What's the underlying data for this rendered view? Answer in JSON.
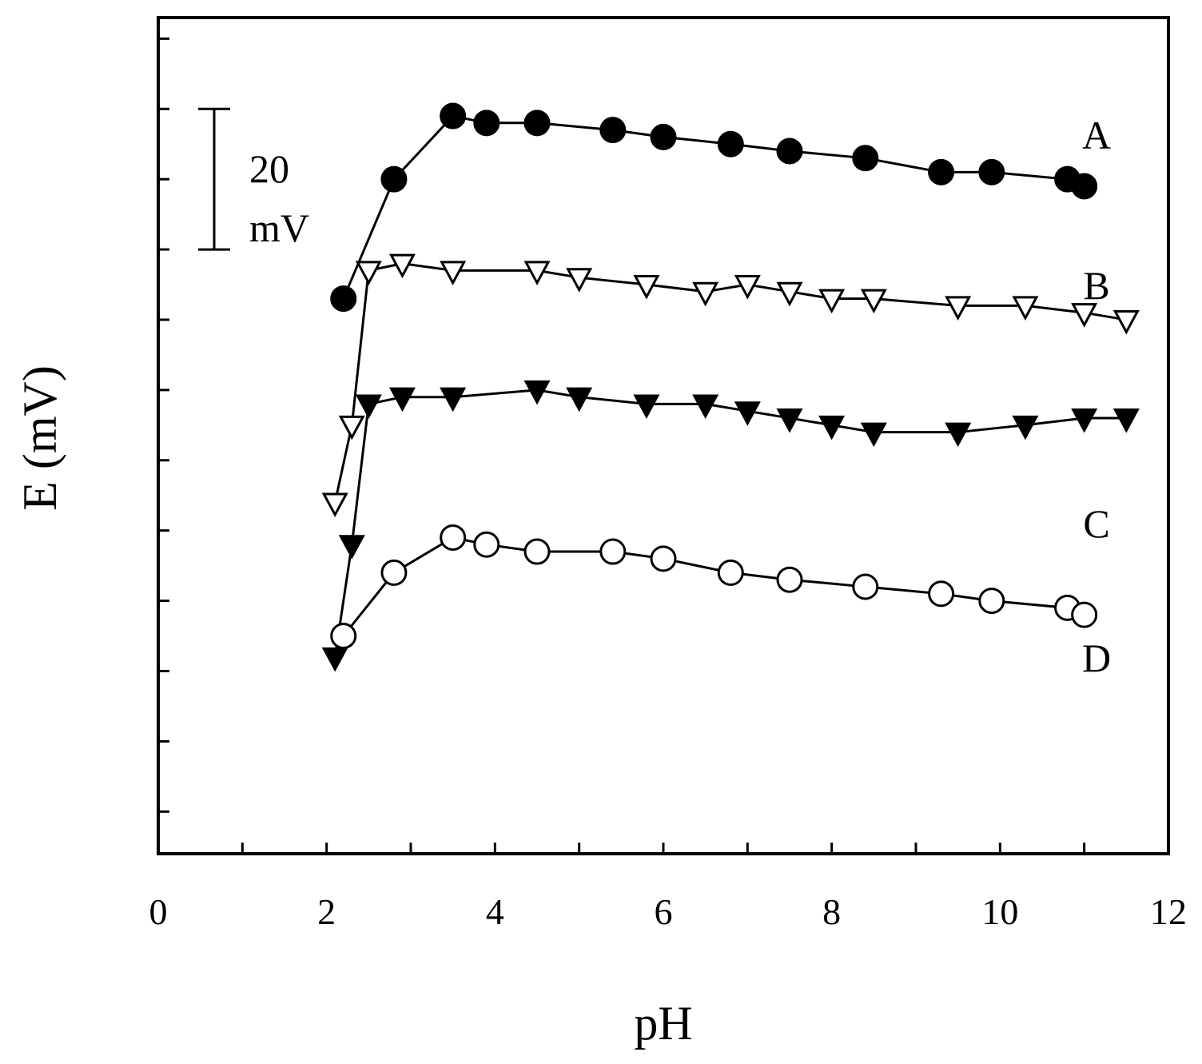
{
  "chart_data": {
    "type": "line",
    "title": "",
    "xlabel": "pH",
    "ylabel": "E (mV)",
    "xlim": [
      0,
      12
    ],
    "ylim": [
      -96,
      23
    ],
    "x_ticks": [
      0,
      2,
      4,
      6,
      8,
      10,
      12
    ],
    "x_tick_labels": [
      "0",
      "2",
      "4",
      "6",
      "8",
      "10",
      "12"
    ],
    "y_tick_labels_shown": false,
    "scale_bar": {
      "value_mv": 20,
      "label_line1": "20",
      "label_line2": "mV"
    },
    "series": [
      {
        "name": "A",
        "marker": "filled-circle",
        "x": [
          2.2,
          2.8,
          3.5,
          3.9,
          4.5,
          5.4,
          6.0,
          6.8,
          7.5,
          8.4,
          9.3,
          9.9,
          10.8,
          11.0
        ],
        "y": [
          -17,
          0,
          9,
          8,
          8,
          7,
          6,
          5,
          4,
          3,
          1,
          1,
          0,
          -1
        ]
      },
      {
        "name": "B",
        "marker": "open-triangle-down",
        "x": [
          2.1,
          2.3,
          2.5,
          2.9,
          3.5,
          4.5,
          5.0,
          5.8,
          6.5,
          7.0,
          7.5,
          8.0,
          8.5,
          9.5,
          10.3,
          11.0,
          11.5
        ],
        "y": [
          -46,
          -35,
          -13,
          -12,
          -13,
          -13,
          -14,
          -15,
          -16,
          -15,
          -16,
          -17,
          -17,
          -18,
          -18,
          -19,
          -20
        ]
      },
      {
        "name": "C",
        "marker": "filled-triangle-down",
        "x": [
          2.1,
          2.3,
          2.5,
          2.9,
          3.5,
          4.5,
          5.0,
          5.8,
          6.5,
          7.0,
          7.5,
          8.0,
          8.5,
          9.5,
          10.3,
          11.0,
          11.5
        ],
        "y": [
          -68,
          -52,
          -32,
          -31,
          -31,
          -30,
          -31,
          -32,
          -32,
          -33,
          -34,
          -35,
          -36,
          -36,
          -35,
          -34,
          -34
        ]
      },
      {
        "name": "D",
        "marker": "open-circle",
        "x": [
          2.2,
          2.8,
          3.5,
          3.9,
          4.5,
          5.4,
          6.0,
          6.8,
          7.5,
          8.4,
          9.3,
          9.9,
          10.8,
          11.0
        ],
        "y": [
          -65,
          -56,
          -51,
          -52,
          -53,
          -53,
          -54,
          -56,
          -57,
          -58,
          -59,
          -60,
          -61,
          -62
        ]
      }
    ]
  }
}
